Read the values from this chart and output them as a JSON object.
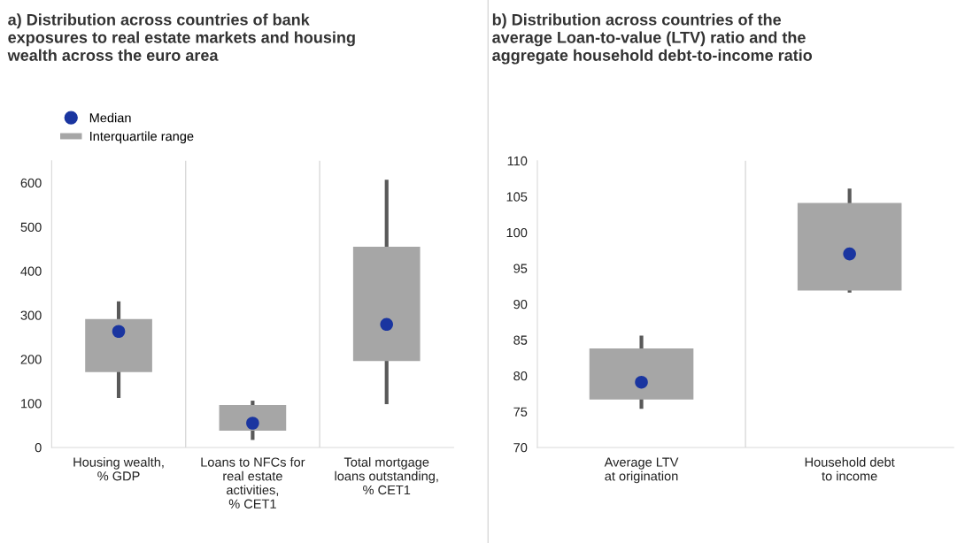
{
  "chart_data": [
    {
      "type": "box",
      "title": "a) Distribution across countries of bank\nexposures to real estate markets and housing\nwealth across the euro area",
      "categories": [
        "Housing wealth,\n% GDP",
        "Loans to NFCs for\nreal estate\nactivities,\n% CET1",
        "Total mortgage\nloans outstanding,\n% CET1"
      ],
      "ylim": [
        0,
        650
      ],
      "yticks": [
        0,
        100,
        200,
        300,
        400,
        500,
        600
      ],
      "legend": "top left",
      "grid": false,
      "series": [
        {
          "name": "Median",
          "type": "scatter",
          "color": "#1a35a0",
          "marker": "circle",
          "x": [
            "Housing wealth,\n% GDP",
            "Loans to NFCs for\nreal estate\nactivities,\n% CET1",
            "Total mortgage\nloans outstanding,\n% CET1"
          ],
          "values": [
            263,
            55,
            279
          ]
        },
        {
          "name": "Interquartile range",
          "color": "#a6a6a6",
          "boxes": [
            {
              "low": 112,
              "q1": 171,
              "q3": 291,
              "high": 331
            },
            {
              "low": 17,
              "q1": 38,
              "q3": 96,
              "high": 106
            },
            {
              "low": 98,
              "q1": 196,
              "q3": 455,
              "high": 607
            }
          ]
        }
      ]
    },
    {
      "type": "box",
      "title": "b) Distribution across countries of the\naverage Loan-to-value (LTV) ratio and the\naggregate household debt-to-income ratio",
      "categories": [
        "Average LTV\nat origination",
        "Household debt\nto income"
      ],
      "ylim": [
        70,
        110
      ],
      "yticks": [
        70,
        75,
        80,
        85,
        90,
        95,
        100,
        105,
        110
      ],
      "grid": false,
      "series": [
        {
          "type": "scatter",
          "color": "#1a35a0",
          "marker": "circle",
          "x": [
            "Average LTV\nat origination",
            "Household debt\nto income"
          ],
          "values": [
            79.1,
            97.0
          ]
        },
        {
          "color": "#a6a6a6",
          "boxes": [
            {
              "low": 75.4,
              "q1": 76.7,
              "q3": 83.8,
              "high": 85.6
            },
            {
              "low": 91.6,
              "q1": 91.9,
              "q3": 104.1,
              "high": 106.1
            }
          ]
        }
      ]
    }
  ]
}
